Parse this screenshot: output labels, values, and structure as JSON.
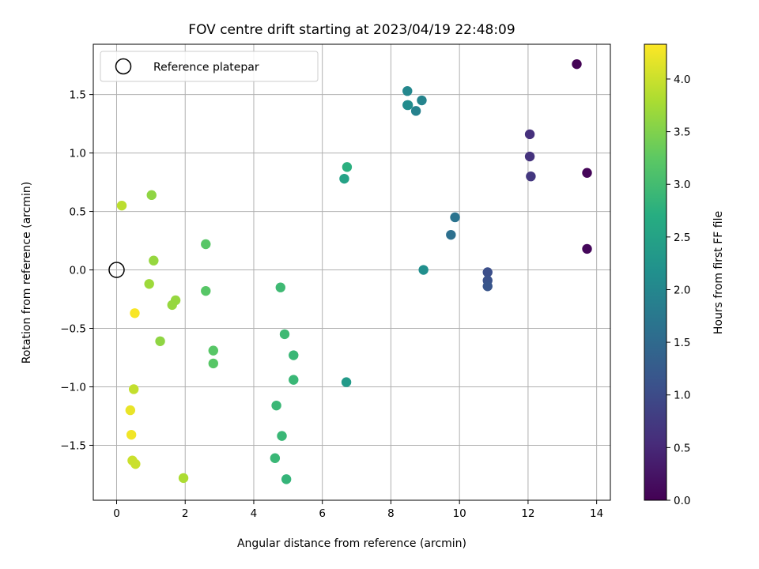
{
  "chart_data": {
    "type": "scatter",
    "title": "FOV centre drift starting at 2023/04/19 22:48:09",
    "xlabel": "Angular distance from reference (arcmin)",
    "ylabel": "Rotation from reference (arcmin)",
    "xlim": [
      -0.68,
      14.4
    ],
    "ylim": [
      -1.97,
      1.93
    ],
    "xticks": [
      0,
      2,
      4,
      6,
      8,
      10,
      12,
      14
    ],
    "yticks": [
      -1.5,
      -1.0,
      -0.5,
      0.0,
      0.5,
      1.0,
      1.5
    ],
    "xtick_labels": [
      "0",
      "2",
      "4",
      "6",
      "8",
      "10",
      "12",
      "14"
    ],
    "ytick_labels": [
      "−1.5",
      "−1.0",
      "−0.5",
      "0.0",
      "0.5",
      "1.0",
      "1.5"
    ],
    "grid": true,
    "legend": {
      "placement": "top-left",
      "entries": [
        {
          "label": "Reference platepar",
          "marker": "open-circle"
        }
      ]
    },
    "reference_point": {
      "x": 0,
      "y": 0
    },
    "colorbar": {
      "label": "Hours from first FF file",
      "colormap": "viridis",
      "range": [
        0,
        4.33
      ],
      "ticks": [
        0.0,
        0.5,
        1.0,
        1.5,
        2.0,
        2.5,
        3.0,
        3.5,
        4.0
      ],
      "tick_labels": [
        "0.0",
        "0.5",
        "1.0",
        "1.5",
        "2.0",
        "2.5",
        "3.0",
        "3.5",
        "4.0"
      ]
    },
    "points": [
      {
        "x": 13.42,
        "y": 1.76,
        "c": 0.02
      },
      {
        "x": 13.72,
        "y": 0.83,
        "c": 0.05
      },
      {
        "x": 13.72,
        "y": 0.18,
        "c": 0.08
      },
      {
        "x": 12.05,
        "y": 1.16,
        "c": 0.6
      },
      {
        "x": 12.05,
        "y": 0.97,
        "c": 0.65
      },
      {
        "x": 12.08,
        "y": 0.8,
        "c": 0.7
      },
      {
        "x": 10.82,
        "y": -0.02,
        "c": 1.05
      },
      {
        "x": 10.82,
        "y": -0.09,
        "c": 1.1
      },
      {
        "x": 10.82,
        "y": -0.14,
        "c": 1.15
      },
      {
        "x": 9.75,
        "y": 0.3,
        "c": 1.6
      },
      {
        "x": 9.87,
        "y": 0.45,
        "c": 1.65
      },
      {
        "x": 8.48,
        "y": 1.53,
        "c": 2.0
      },
      {
        "x": 8.48,
        "y": 1.41,
        "c": 2.05
      },
      {
        "x": 8.5,
        "y": 1.41,
        "c": 2.1
      },
      {
        "x": 8.73,
        "y": 1.36,
        "c": 1.9
      },
      {
        "x": 8.9,
        "y": 1.45,
        "c": 1.95
      },
      {
        "x": 8.95,
        "y": 0.0,
        "c": 2.15
      },
      {
        "x": 6.7,
        "y": -0.96,
        "c": 2.35
      },
      {
        "x": 6.64,
        "y": 0.78,
        "c": 2.5
      },
      {
        "x": 6.72,
        "y": 0.88,
        "c": 2.75
      },
      {
        "x": 4.78,
        "y": -0.15,
        "c": 2.95
      },
      {
        "x": 4.9,
        "y": -0.55,
        "c": 2.95
      },
      {
        "x": 5.16,
        "y": -0.73,
        "c": 2.9
      },
      {
        "x": 5.16,
        "y": -0.94,
        "c": 2.9
      },
      {
        "x": 4.66,
        "y": -1.16,
        "c": 2.9
      },
      {
        "x": 4.82,
        "y": -1.42,
        "c": 2.9
      },
      {
        "x": 4.62,
        "y": -1.61,
        "c": 2.9
      },
      {
        "x": 4.95,
        "y": -1.79,
        "c": 2.85
      },
      {
        "x": 2.6,
        "y": 0.22,
        "c": 3.2
      },
      {
        "x": 2.6,
        "y": -0.18,
        "c": 3.2
      },
      {
        "x": 2.82,
        "y": -0.69,
        "c": 3.2
      },
      {
        "x": 2.82,
        "y": -0.8,
        "c": 3.2
      },
      {
        "x": 1.02,
        "y": 0.64,
        "c": 3.6
      },
      {
        "x": 1.08,
        "y": 0.08,
        "c": 3.65
      },
      {
        "x": 0.95,
        "y": -0.12,
        "c": 3.7
      },
      {
        "x": 1.72,
        "y": -0.26,
        "c": 3.65
      },
      {
        "x": 1.62,
        "y": -0.3,
        "c": 3.65
      },
      {
        "x": 1.27,
        "y": -0.61,
        "c": 3.6
      },
      {
        "x": 1.95,
        "y": -1.78,
        "c": 3.8
      },
      {
        "x": 0.15,
        "y": 0.55,
        "c": 3.9
      },
      {
        "x": 0.53,
        "y": -0.37,
        "c": 4.3
      },
      {
        "x": 0.5,
        "y": -1.02,
        "c": 3.95
      },
      {
        "x": 0.4,
        "y": -1.2,
        "c": 4.2
      },
      {
        "x": 0.43,
        "y": -1.41,
        "c": 4.25
      },
      {
        "x": 0.46,
        "y": -1.63,
        "c": 4.0
      },
      {
        "x": 0.55,
        "y": -1.66,
        "c": 4.0
      }
    ]
  }
}
